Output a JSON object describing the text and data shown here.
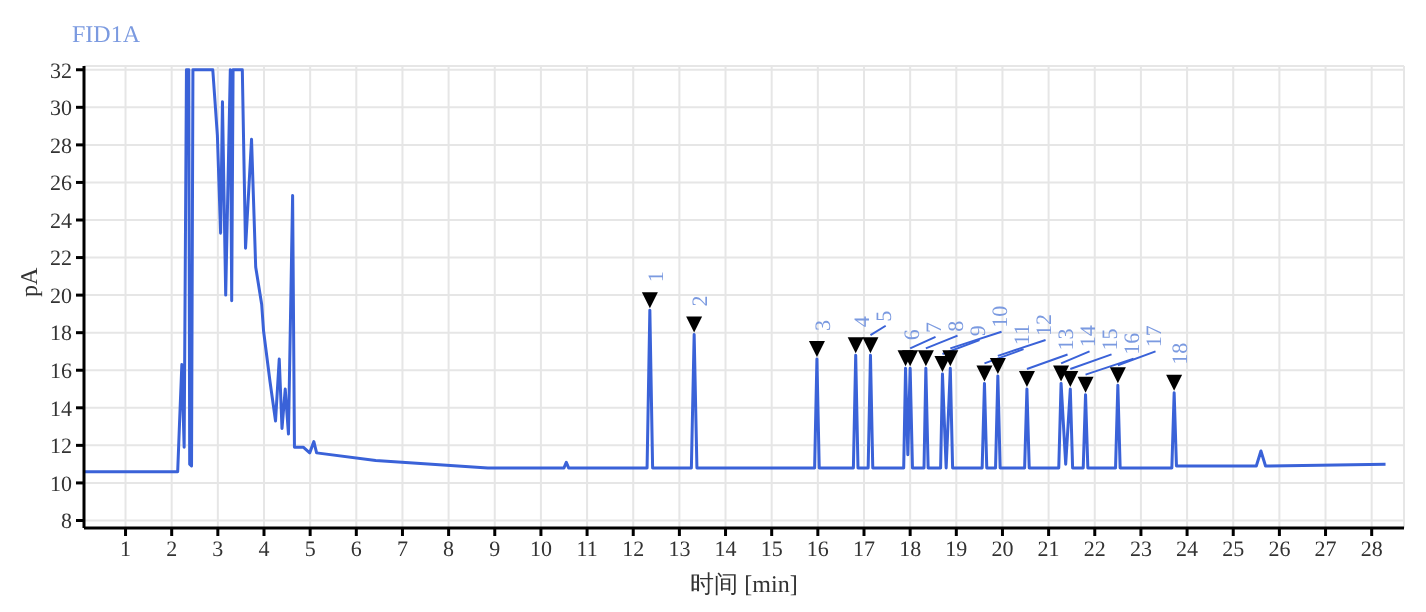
{
  "chart_data": {
    "type": "line",
    "title": "FID1A",
    "xlabel": "时间 [min]",
    "ylabel": "pA",
    "x": [
      0.1,
      2.13,
      2.17,
      2.22,
      2.27,
      2.32,
      2.37,
      2.39,
      2.43,
      2.46,
      2.89,
      2.99,
      3.06,
      3.1,
      3.17,
      3.27,
      3.3,
      3.33,
      3.53,
      3.6,
      3.73,
      3.82,
      3.95,
      3.99,
      4.13,
      4.25,
      4.33,
      4.39,
      4.46,
      4.53,
      4.62,
      4.66,
      4.85,
      4.99,
      5.08,
      5.14,
      6.42,
      8.85,
      10.5,
      10.55,
      10.6,
      12.3,
      12.36,
      12.42,
      13.26,
      13.32,
      13.38,
      15.93,
      15.98,
      16.03,
      16.77,
      16.82,
      16.87,
      17.09,
      17.14,
      17.19,
      17.86,
      17.9,
      17.95,
      18.0,
      18.05,
      18.3,
      18.34,
      18.39,
      18.66,
      18.7,
      18.78,
      18.87,
      18.92,
      19.56,
      19.61,
      19.66,
      19.85,
      19.9,
      19.95,
      20.48,
      20.53,
      20.58,
      21.22,
      21.27,
      21.37,
      21.47,
      21.52,
      21.75,
      21.8,
      21.85,
      22.45,
      22.5,
      22.55,
      23.67,
      23.72,
      23.77,
      25.5,
      25.6,
      25.7,
      28.3
    ],
    "series": [
      {
        "color": "#3a62d8",
        "values": [
          10.6,
          10.6,
          13.2,
          16.3,
          11.9,
          32,
          32,
          11,
          10.9,
          32,
          32,
          28.5,
          23.3,
          30.3,
          20,
          32,
          19.7,
          32,
          32,
          22.5,
          28.3,
          21.5,
          19.5,
          18.1,
          15.4,
          13.3,
          16.6,
          12.9,
          15.0,
          12.6,
          25.3,
          11.9,
          11.9,
          11.6,
          12.2,
          11.6,
          11.2,
          10.8,
          10.8,
          11.1,
          10.8,
          10.8,
          19.2,
          10.8,
          10.8,
          17.9,
          10.8,
          10.8,
          16.6,
          10.8,
          10.8,
          16.8,
          10.8,
          10.8,
          16.8,
          10.8,
          10.8,
          16.1,
          11.5,
          16.1,
          10.8,
          10.8,
          16.1,
          10.8,
          10.8,
          15.8,
          10.8,
          16.1,
          10.8,
          10.8,
          15.3,
          10.8,
          10.8,
          15.7,
          10.8,
          10.8,
          15.0,
          10.8,
          10.8,
          15.3,
          11.0,
          15.0,
          10.8,
          10.8,
          14.7,
          10.8,
          10.8,
          15.2,
          10.8,
          10.8,
          14.8,
          10.9,
          10.9,
          11.7,
          10.9,
          11.0
        ]
      }
    ],
    "xlim": [
      0.1,
      28.7
    ],
    "xticks": [
      1,
      2,
      3,
      4,
      5,
      6,
      7,
      8,
      9,
      10,
      11,
      12,
      13,
      14,
      15,
      16,
      17,
      18,
      19,
      20,
      21,
      22,
      23,
      24,
      25,
      26,
      27,
      28
    ],
    "ylim": [
      7.6,
      32.2
    ],
    "yticks": [
      8,
      10,
      12,
      14,
      16,
      18,
      20,
      22,
      24,
      26,
      28,
      30,
      32
    ],
    "grid": true,
    "legend": false,
    "marker": "none",
    "line_style": "solid",
    "annotations": [
      {
        "text": "1",
        "x": 12.36,
        "y": 19.2
      },
      {
        "text": "2",
        "x": 13.32,
        "y": 17.9
      },
      {
        "text": "3",
        "x": 15.98,
        "y": 16.6
      },
      {
        "text": "4",
        "x": 16.82,
        "y": 16.8
      },
      {
        "text": "5",
        "x": 17.14,
        "y": 16.8
      },
      {
        "text": "6",
        "x": 17.9,
        "y": 16.1
      },
      {
        "text": "7",
        "x": 18.0,
        "y": 16.1
      },
      {
        "text": "8",
        "x": 18.34,
        "y": 16.1
      },
      {
        "text": "9",
        "x": 18.7,
        "y": 15.8
      },
      {
        "text": "10",
        "x": 18.87,
        "y": 16.1
      },
      {
        "text": "11",
        "x": 19.61,
        "y": 15.3
      },
      {
        "text": "12",
        "x": 19.9,
        "y": 15.7
      },
      {
        "text": "13",
        "x": 20.53,
        "y": 15.0
      },
      {
        "text": "14",
        "x": 21.27,
        "y": 15.3
      },
      {
        "text": "15",
        "x": 21.47,
        "y": 15.0
      },
      {
        "text": "16",
        "x": 21.8,
        "y": 14.7
      },
      {
        "text": "17",
        "x": 22.5,
        "y": 15.2
      },
      {
        "text": "18",
        "x": 23.72,
        "y": 14.8
      }
    ]
  }
}
